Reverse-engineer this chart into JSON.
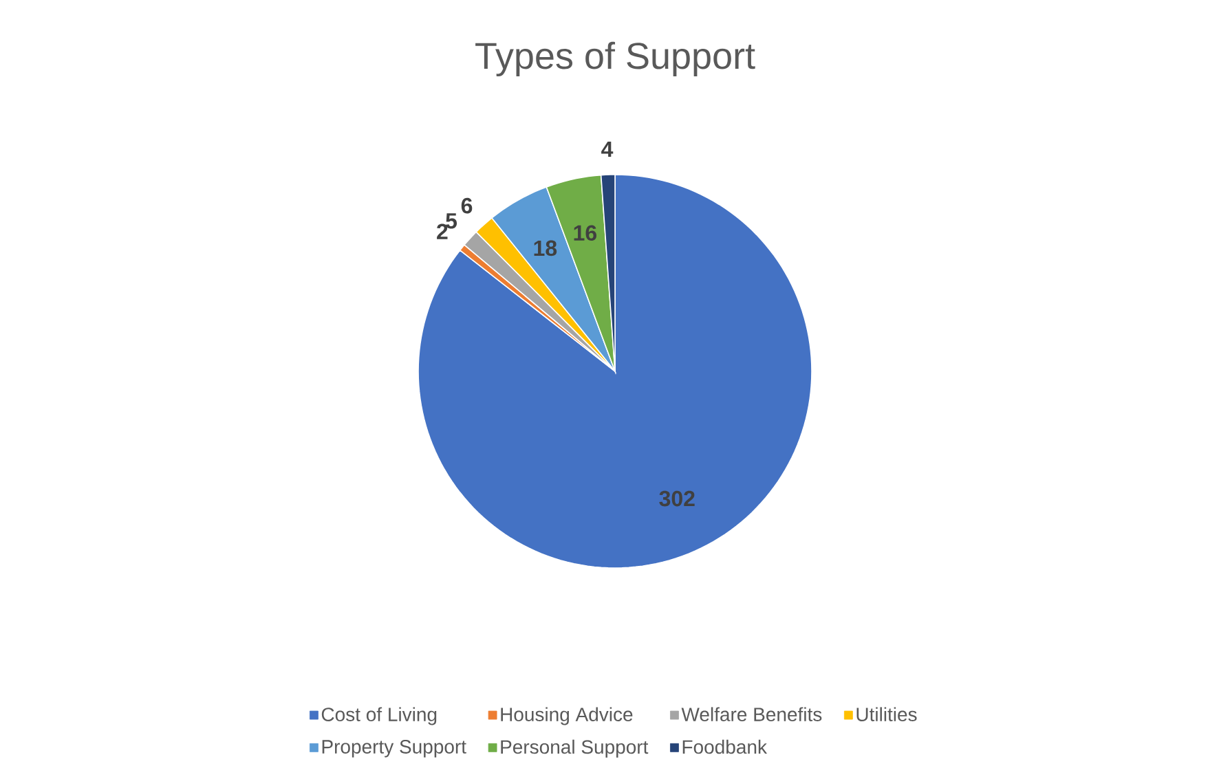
{
  "chart_data": {
    "type": "pie",
    "title": "Types of Support",
    "categories": [
      "Cost of Living",
      "Housing Advice",
      "Welfare Benefits",
      "Utilities",
      "Property Support",
      "Personal Support",
      "Foodbank"
    ],
    "values": [
      302,
      2,
      5,
      6,
      18,
      16,
      4
    ],
    "colors": [
      "#4472c4",
      "#ed7d31",
      "#a5a5a5",
      "#ffc000",
      "#5b9bd5",
      "#70ad47",
      "#264478"
    ],
    "data_labels": true,
    "legend": "bottom"
  }
}
